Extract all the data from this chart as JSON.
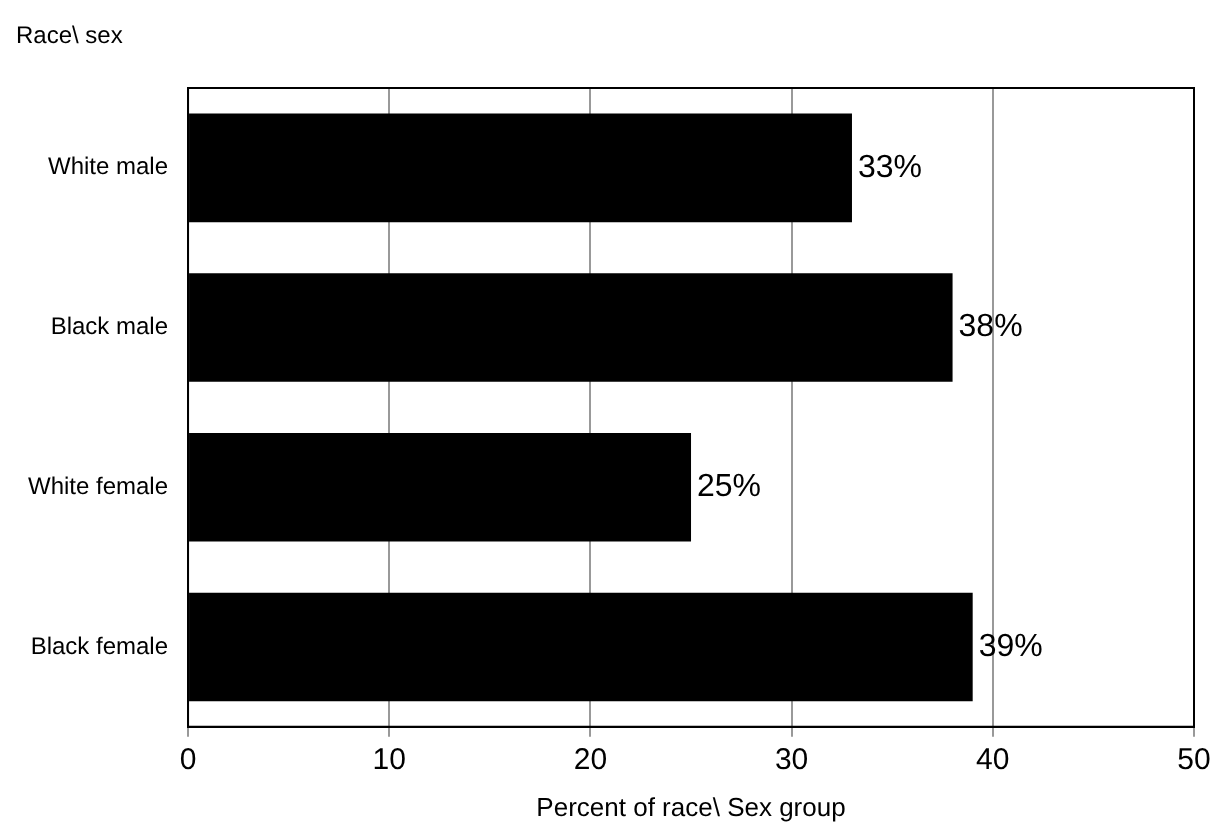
{
  "chart_data": {
    "type": "bar",
    "orientation": "horizontal",
    "ylabel": "Race\\ sex",
    "xlabel": "Percent of race\\ Sex group",
    "categories": [
      "White male",
      "Black male",
      "White female",
      "Black female"
    ],
    "values": [
      33,
      38,
      25,
      39
    ],
    "color": "#000000",
    "value_labels": [
      "33%",
      "38%",
      "25%",
      "39%"
    ],
    "xlim": [
      0,
      50
    ],
    "xticks": [
      0,
      10,
      20,
      30,
      40,
      50
    ],
    "grid": "x",
    "legend": false
  }
}
